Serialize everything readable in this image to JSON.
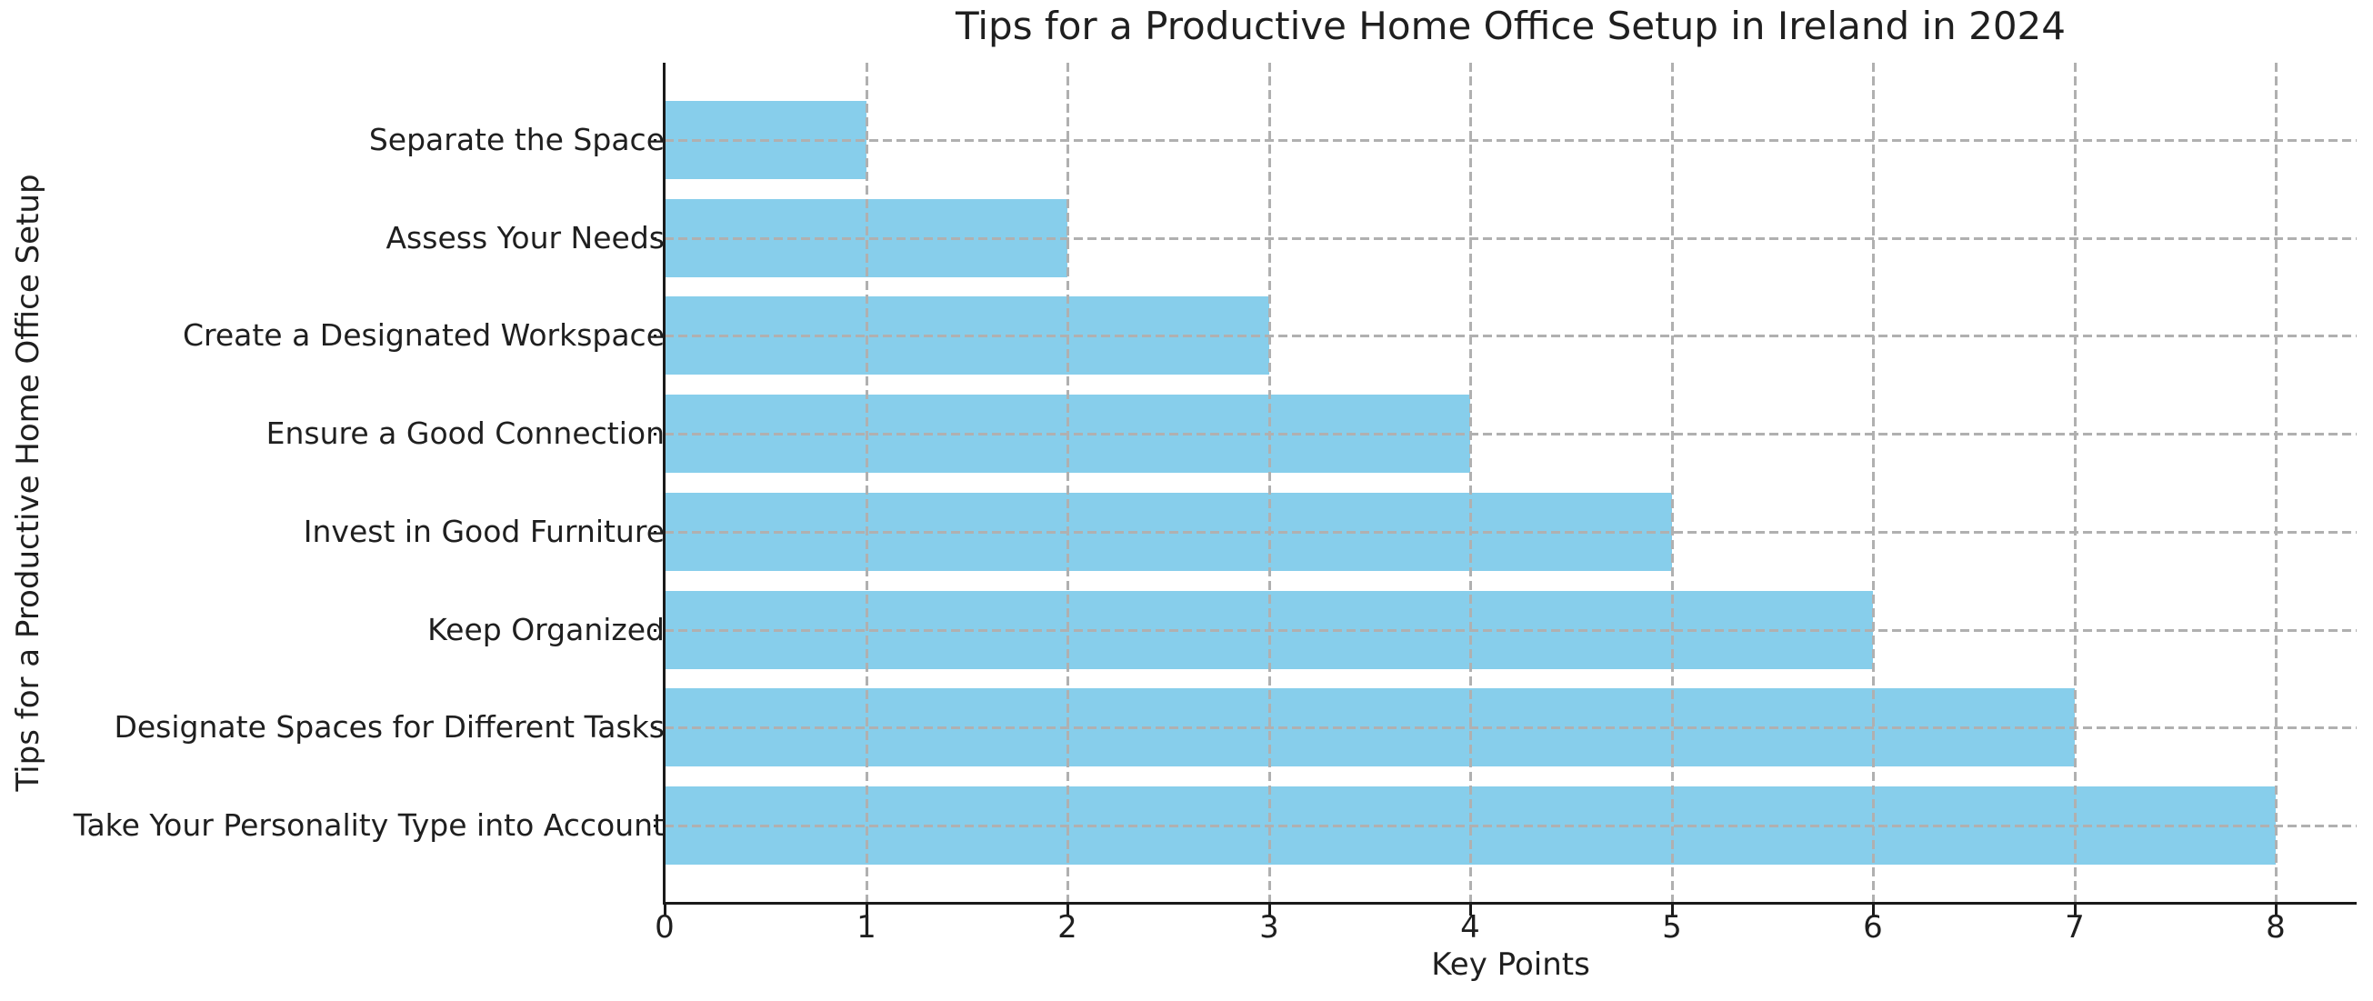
{
  "chart_data": {
    "type": "bar",
    "orientation": "horizontal",
    "title": "Tips for a Productive Home Office Setup in Ireland in 2024",
    "xlabel": "Key Points",
    "ylabel": "Tips for a Productive Home Office Setup",
    "categories": [
      "Separate the Space",
      "Assess Your Needs",
      "Create a Designated Workspace",
      "Ensure a Good Connection",
      "Invest in Good Furniture",
      "Keep Organized",
      "Designate Spaces for Different Tasks",
      "Take Your Personality Type into Account"
    ],
    "values": [
      1,
      2,
      3,
      4,
      5,
      6,
      7,
      8
    ],
    "xticks": [
      0,
      1,
      2,
      3,
      4,
      5,
      6,
      7,
      8
    ],
    "xlim": [
      0,
      8.4
    ],
    "grid": true,
    "grid_style": "dashed",
    "grid_on_top_of_bars": true,
    "legend": "none",
    "bar_color": "#87CEEB",
    "grid_color": "#b0b0b0",
    "axis_color": "#1a1a1a",
    "text_color": "#1f1f1f",
    "background_color": "#ffffff"
  }
}
